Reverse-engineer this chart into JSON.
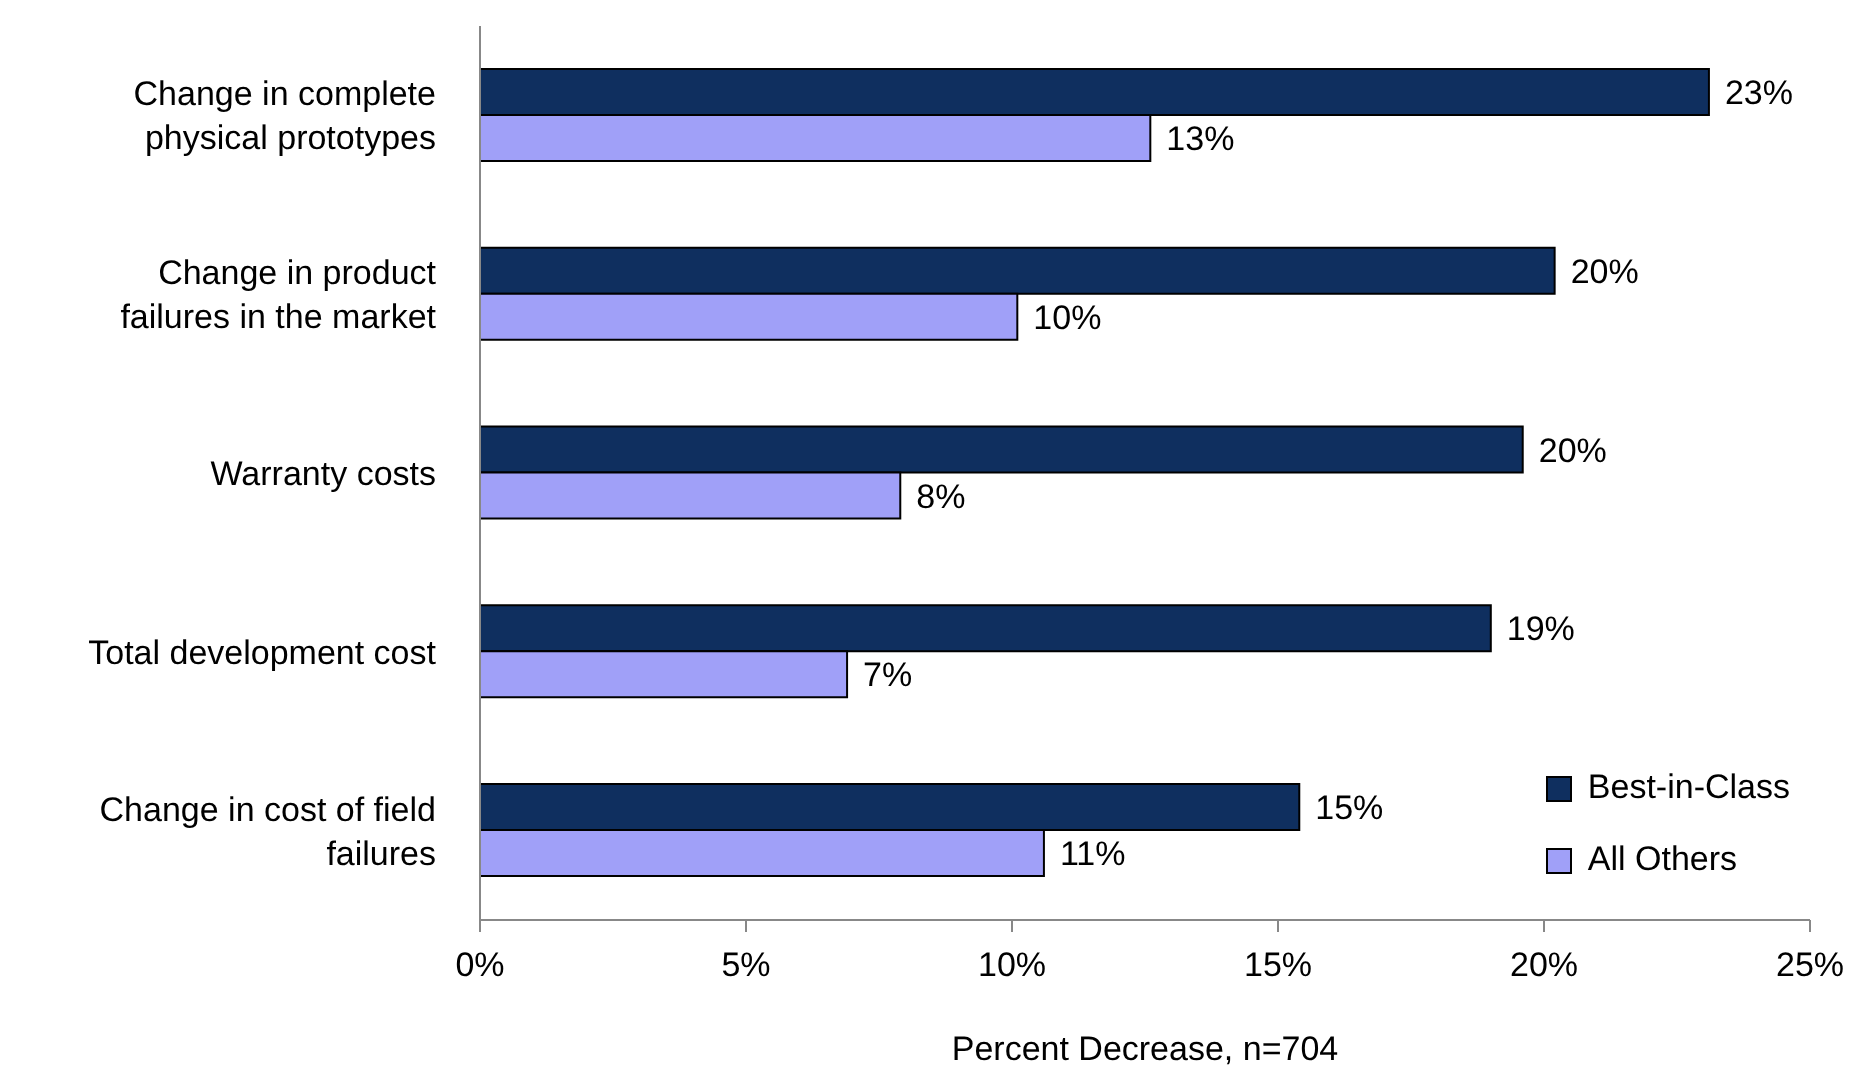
{
  "chart_data": {
    "type": "bar",
    "orientation": "horizontal",
    "xlabel": "Percent Decrease, n=704",
    "categories": [
      "Change in complete physical prototypes",
      "Change in product failures in the market",
      "Warranty costs",
      "Total development cost",
      "Change in cost of field failures"
    ],
    "series": [
      {
        "name": "Best-in-Class",
        "color": "#0f2f5f",
        "values": [
          23.1,
          20.2,
          19.6,
          19.0,
          15.4
        ],
        "value_labels": [
          "23%",
          "20%",
          "20%",
          "19%",
          "15%"
        ]
      },
      {
        "name": "All Others",
        "color": "#a0a0f8",
        "values": [
          12.6,
          10.1,
          7.9,
          6.9,
          10.6
        ],
        "value_labels": [
          "13%",
          "10%",
          "8%",
          "7%",
          "11%"
        ]
      }
    ],
    "xlim": [
      0,
      25
    ],
    "xticks": [
      {
        "value": 0,
        "label": "0%"
      },
      {
        "value": 5,
        "label": "5%"
      },
      {
        "value": 10,
        "label": "10%"
      },
      {
        "value": 15,
        "label": "15%"
      },
      {
        "value": 20,
        "label": "20%"
      },
      {
        "value": 25,
        "label": "25%"
      }
    ],
    "grid": false,
    "legend": "bottom right"
  }
}
